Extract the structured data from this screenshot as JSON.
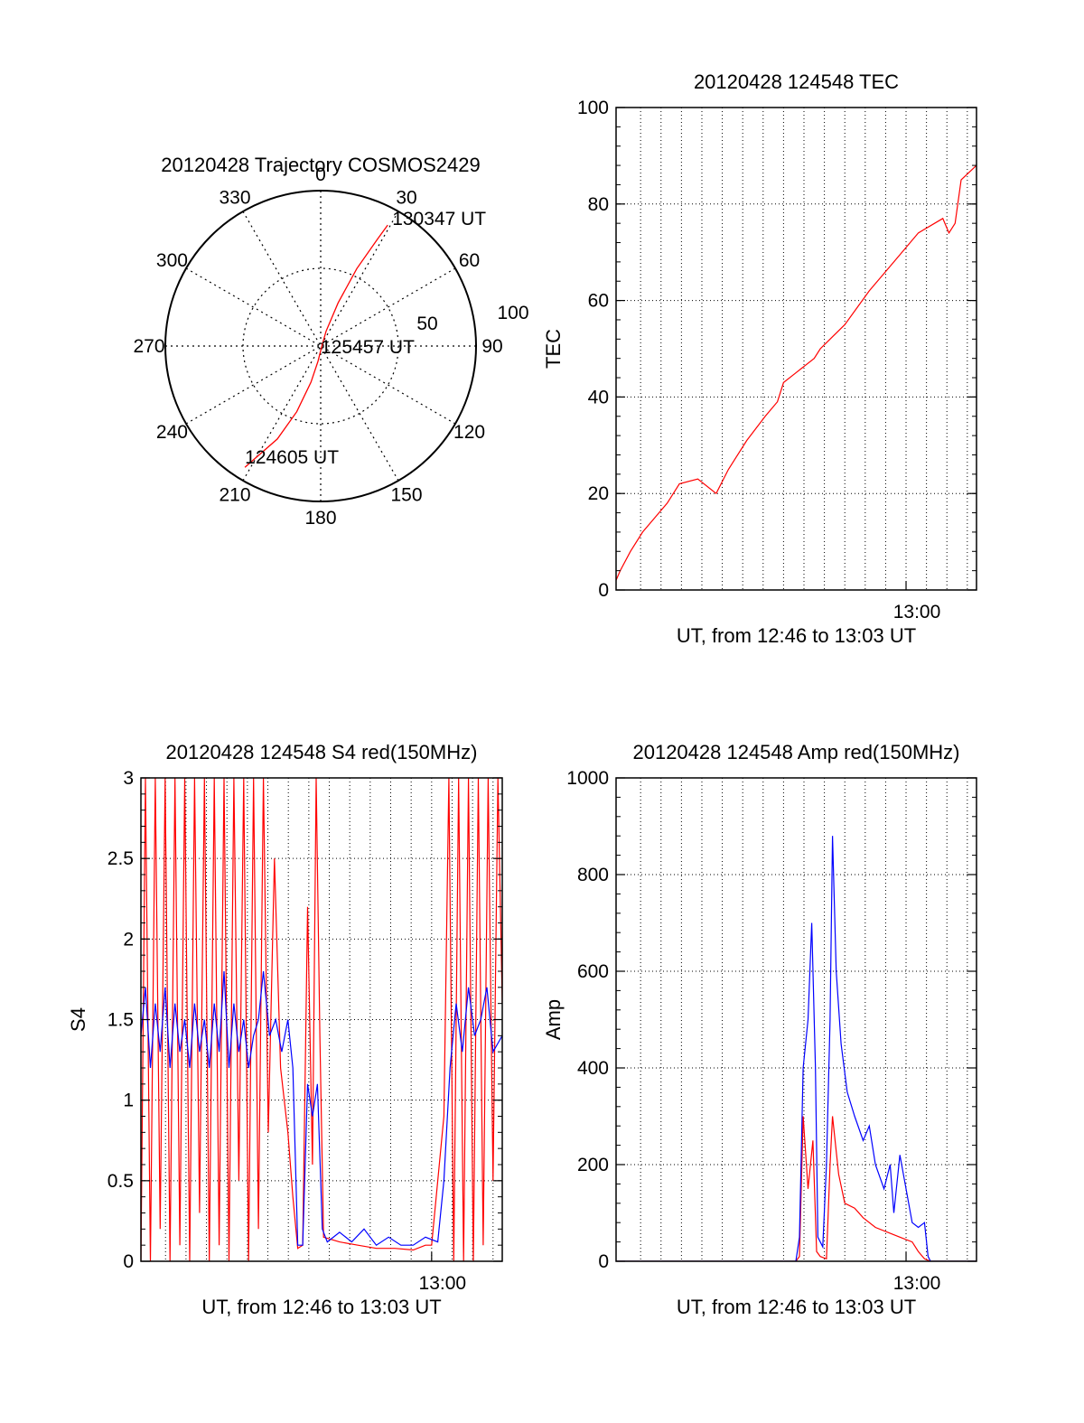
{
  "chart_data": [
    {
      "id": "trajectory",
      "type": "polar",
      "title": "20120428 Trajectory COSMOS2429",
      "angle_labels": [
        {
          "deg": 0,
          "label": "0"
        },
        {
          "deg": 30,
          "label": "30"
        },
        {
          "deg": 60,
          "label": "60"
        },
        {
          "deg": 90,
          "label": "90"
        },
        {
          "deg": 120,
          "label": "120"
        },
        {
          "deg": 150,
          "label": "150"
        },
        {
          "deg": 180,
          "label": "180"
        },
        {
          "deg": 210,
          "label": "210"
        },
        {
          "deg": 240,
          "label": "240"
        },
        {
          "deg": 270,
          "label": "270"
        },
        {
          "deg": 300,
          "label": "300"
        },
        {
          "deg": 330,
          "label": "330"
        }
      ],
      "radial_labels": [
        "50",
        "100"
      ],
      "radial_max": 100,
      "radial_rings": [
        50
      ],
      "track": [
        {
          "az": 212,
          "r": 92
        },
        {
          "az": 205,
          "r": 66
        },
        {
          "az": 200,
          "r": 45
        },
        {
          "az": 195,
          "r": 24
        },
        {
          "az": 190,
          "r": 10
        },
        {
          "az": 150,
          "r": 1
        },
        {
          "az": 20,
          "r": 10
        },
        {
          "az": 22,
          "r": 30
        },
        {
          "az": 25,
          "r": 55
        },
        {
          "az": 28,
          "r": 78
        },
        {
          "az": 29,
          "r": 89
        }
      ],
      "annotations": [
        {
          "text": "130347 UT",
          "az": 29,
          "r": 89
        },
        {
          "text": "125457 UT",
          "az": 0,
          "r": 0
        },
        {
          "text": "124605 UT",
          "az": 212,
          "r": 92
        }
      ],
      "line_color": "#ff0000"
    },
    {
      "id": "tec",
      "type": "line",
      "title": "20120428 124548 TEC",
      "xlabel": "UT, from 12:46 to 13:03 UT",
      "ylabel": "TEC",
      "xlim": [
        12.7633,
        13.0575
      ],
      "ylim": [
        0,
        100
      ],
      "yticks": [
        0,
        20,
        40,
        60,
        80,
        100
      ],
      "xticks": [
        {
          "value": 13.0,
          "label": "13:00"
        }
      ],
      "grid": true,
      "series": [
        {
          "color": "#ff0000",
          "points": [
            [
              12.7633,
              2
            ],
            [
              12.7667,
              4
            ],
            [
              12.775,
              8
            ],
            [
              12.785,
              12
            ],
            [
              12.795,
              15
            ],
            [
              12.805,
              18
            ],
            [
              12.815,
              22
            ],
            [
              12.83,
              23
            ],
            [
              12.845,
              20
            ],
            [
              12.855,
              25
            ],
            [
              12.87,
              31
            ],
            [
              12.885,
              36
            ],
            [
              12.895,
              39
            ],
            [
              12.9,
              43
            ],
            [
              12.91,
              45
            ],
            [
              12.915,
              46
            ],
            [
              12.925,
              48
            ],
            [
              12.93,
              50
            ],
            [
              12.95,
              55
            ],
            [
              12.97,
              62
            ],
            [
              12.99,
              68
            ],
            [
              13.01,
              74
            ],
            [
              13.03,
              77
            ],
            [
              13.035,
              74
            ],
            [
              13.04,
              76
            ],
            [
              13.045,
              85
            ],
            [
              13.0575,
              88
            ]
          ]
        }
      ]
    },
    {
      "id": "s4",
      "type": "line",
      "title": "20120428 124548 S4 red(150MHz)",
      "xlabel": "UT, from 12:46 to 13:03 UT",
      "ylabel": "S4",
      "xlim": [
        12.7633,
        13.0575
      ],
      "ylim": [
        0,
        3
      ],
      "yticks": [
        0,
        0.5,
        1,
        1.5,
        2,
        2.5,
        3
      ],
      "ytick_labels": [
        "0",
        "0.5",
        "1",
        "1.5",
        "2",
        "2.5",
        "3"
      ],
      "xticks": [
        {
          "value": 13.0,
          "label": "13:00"
        }
      ],
      "grid": true,
      "series": [
        {
          "color": "#ff0000",
          "points": [
            [
              12.7633,
              0
            ],
            [
              12.767,
              3
            ],
            [
              12.771,
              0
            ],
            [
              12.775,
              3
            ],
            [
              12.779,
              0.2
            ],
            [
              12.783,
              3
            ],
            [
              12.787,
              0
            ],
            [
              12.791,
              3
            ],
            [
              12.795,
              0.1
            ],
            [
              12.799,
              3
            ],
            [
              12.803,
              0
            ],
            [
              12.807,
              3
            ],
            [
              12.811,
              0.3
            ],
            [
              12.815,
              3
            ],
            [
              12.819,
              0
            ],
            [
              12.823,
              3
            ],
            [
              12.827,
              0.1
            ],
            [
              12.831,
              3
            ],
            [
              12.835,
              0
            ],
            [
              12.839,
              3
            ],
            [
              12.843,
              0.5
            ],
            [
              12.847,
              3
            ],
            [
              12.851,
              0
            ],
            [
              12.855,
              3
            ],
            [
              12.859,
              0.2
            ],
            [
              12.863,
              3
            ],
            [
              12.867,
              0.8
            ],
            [
              12.872,
              2.5
            ],
            [
              12.877,
              1.2
            ],
            [
              12.883,
              0.8
            ],
            [
              12.887,
              0.4
            ],
            [
              12.891,
              0.08
            ],
            [
              12.895,
              0.1
            ],
            [
              12.899,
              2.2
            ],
            [
              12.903,
              0.6
            ],
            [
              12.906,
              3
            ],
            [
              12.909,
              1.4
            ],
            [
              12.912,
              0.15
            ],
            [
              12.925,
              0.12
            ],
            [
              12.94,
              0.1
            ],
            [
              12.955,
              0.08
            ],
            [
              12.97,
              0.08
            ],
            [
              12.985,
              0.07
            ],
            [
              12.995,
              0.1
            ],
            [
              13.0,
              0.1
            ],
            [
              13.01,
              0.9
            ],
            [
              13.014,
              3
            ],
            [
              13.018,
              0
            ],
            [
              13.022,
              3
            ],
            [
              13.026,
              0
            ],
            [
              13.03,
              3
            ],
            [
              13.034,
              0
            ],
            [
              13.038,
              3
            ],
            [
              13.042,
              0.1
            ],
            [
              13.046,
              3
            ],
            [
              13.05,
              0.5
            ],
            [
              13.054,
              3
            ],
            [
              13.0575,
              1.6
            ]
          ]
        },
        {
          "color": "#0000ff",
          "points": [
            [
              12.7633,
              1.4
            ],
            [
              12.767,
              1.7
            ],
            [
              12.771,
              1.2
            ],
            [
              12.775,
              1.6
            ],
            [
              12.779,
              1.3
            ],
            [
              12.783,
              1.7
            ],
            [
              12.787,
              1.2
            ],
            [
              12.791,
              1.6
            ],
            [
              12.795,
              1.3
            ],
            [
              12.799,
              1.5
            ],
            [
              12.803,
              1.2
            ],
            [
              12.807,
              1.6
            ],
            [
              12.811,
              1.3
            ],
            [
              12.815,
              1.5
            ],
            [
              12.819,
              1.2
            ],
            [
              12.823,
              1.6
            ],
            [
              12.827,
              1.3
            ],
            [
              12.831,
              1.8
            ],
            [
              12.835,
              1.2
            ],
            [
              12.839,
              1.6
            ],
            [
              12.843,
              1.3
            ],
            [
              12.847,
              1.5
            ],
            [
              12.851,
              1.2
            ],
            [
              12.855,
              1.4
            ],
            [
              12.859,
              1.5
            ],
            [
              12.863,
              1.8
            ],
            [
              12.868,
              1.4
            ],
            [
              12.873,
              1.5
            ],
            [
              12.878,
              1.3
            ],
            [
              12.883,
              1.5
            ],
            [
              12.887,
              1.2
            ],
            [
              12.891,
              0.1
            ],
            [
              12.895,
              0.1
            ],
            [
              12.899,
              1.1
            ],
            [
              12.903,
              0.9
            ],
            [
              12.907,
              1.1
            ],
            [
              12.911,
              0.2
            ],
            [
              12.915,
              0.12
            ],
            [
              12.925,
              0.18
            ],
            [
              12.935,
              0.12
            ],
            [
              12.945,
              0.2
            ],
            [
              12.955,
              0.1
            ],
            [
              12.965,
              0.15
            ],
            [
              12.975,
              0.1
            ],
            [
              12.985,
              0.1
            ],
            [
              12.995,
              0.15
            ],
            [
              13.005,
              0.12
            ],
            [
              13.01,
              0.5
            ],
            [
              13.015,
              1.2
            ],
            [
              13.02,
              1.6
            ],
            [
              13.025,
              1.3
            ],
            [
              13.03,
              1.7
            ],
            [
              13.035,
              1.4
            ],
            [
              13.04,
              1.5
            ],
            [
              13.045,
              1.7
            ],
            [
              13.05,
              1.3
            ],
            [
              13.0575,
              1.4
            ]
          ]
        }
      ]
    },
    {
      "id": "amp",
      "type": "line",
      "title": "20120428 124548 Amp red(150MHz)",
      "xlabel": "UT, from 12:46 to 13:03 UT",
      "ylabel": "Amp",
      "xlim": [
        12.7633,
        13.0575
      ],
      "ylim": [
        0,
        1000
      ],
      "yticks": [
        0,
        200,
        400,
        600,
        800,
        1000
      ],
      "xticks": [
        {
          "value": 13.0,
          "label": "13:00"
        }
      ],
      "grid": true,
      "series": [
        {
          "color": "#ff0000",
          "points": [
            [
              12.7633,
              0
            ],
            [
              12.91,
              0
            ],
            [
              12.913,
              10
            ],
            [
              12.916,
              300
            ],
            [
              12.92,
              150
            ],
            [
              12.924,
              250
            ],
            [
              12.927,
              20
            ],
            [
              12.93,
              10
            ],
            [
              12.935,
              5
            ],
            [
              12.938,
              200
            ],
            [
              12.94,
              300
            ],
            [
              12.945,
              180
            ],
            [
              12.95,
              120
            ],
            [
              12.958,
              110
            ],
            [
              12.965,
              90
            ],
            [
              12.975,
              70
            ],
            [
              12.985,
              60
            ],
            [
              12.995,
              50
            ],
            [
              13.005,
              40
            ],
            [
              13.01,
              20
            ],
            [
              13.015,
              5
            ],
            [
              13.02,
              0
            ],
            [
              13.0575,
              0
            ]
          ]
        },
        {
          "color": "#0000ff",
          "points": [
            [
              12.7633,
              0
            ],
            [
              12.91,
              0
            ],
            [
              12.913,
              50
            ],
            [
              12.916,
              400
            ],
            [
              12.92,
              500
            ],
            [
              12.923,
              700
            ],
            [
              12.926,
              400
            ],
            [
              12.928,
              50
            ],
            [
              12.932,
              30
            ],
            [
              12.935,
              200
            ],
            [
              12.938,
              500
            ],
            [
              12.94,
              880
            ],
            [
              12.943,
              600
            ],
            [
              12.947,
              450
            ],
            [
              12.952,
              350
            ],
            [
              12.958,
              300
            ],
            [
              12.965,
              250
            ],
            [
              12.97,
              280
            ],
            [
              12.975,
              200
            ],
            [
              12.982,
              150
            ],
            [
              12.987,
              200
            ],
            [
              12.99,
              100
            ],
            [
              12.995,
              220
            ],
            [
              13.0,
              150
            ],
            [
              13.005,
              80
            ],
            [
              13.01,
              70
            ],
            [
              13.015,
              80
            ],
            [
              13.018,
              10
            ],
            [
              13.02,
              0
            ],
            [
              13.0575,
              0
            ]
          ]
        }
      ]
    }
  ]
}
